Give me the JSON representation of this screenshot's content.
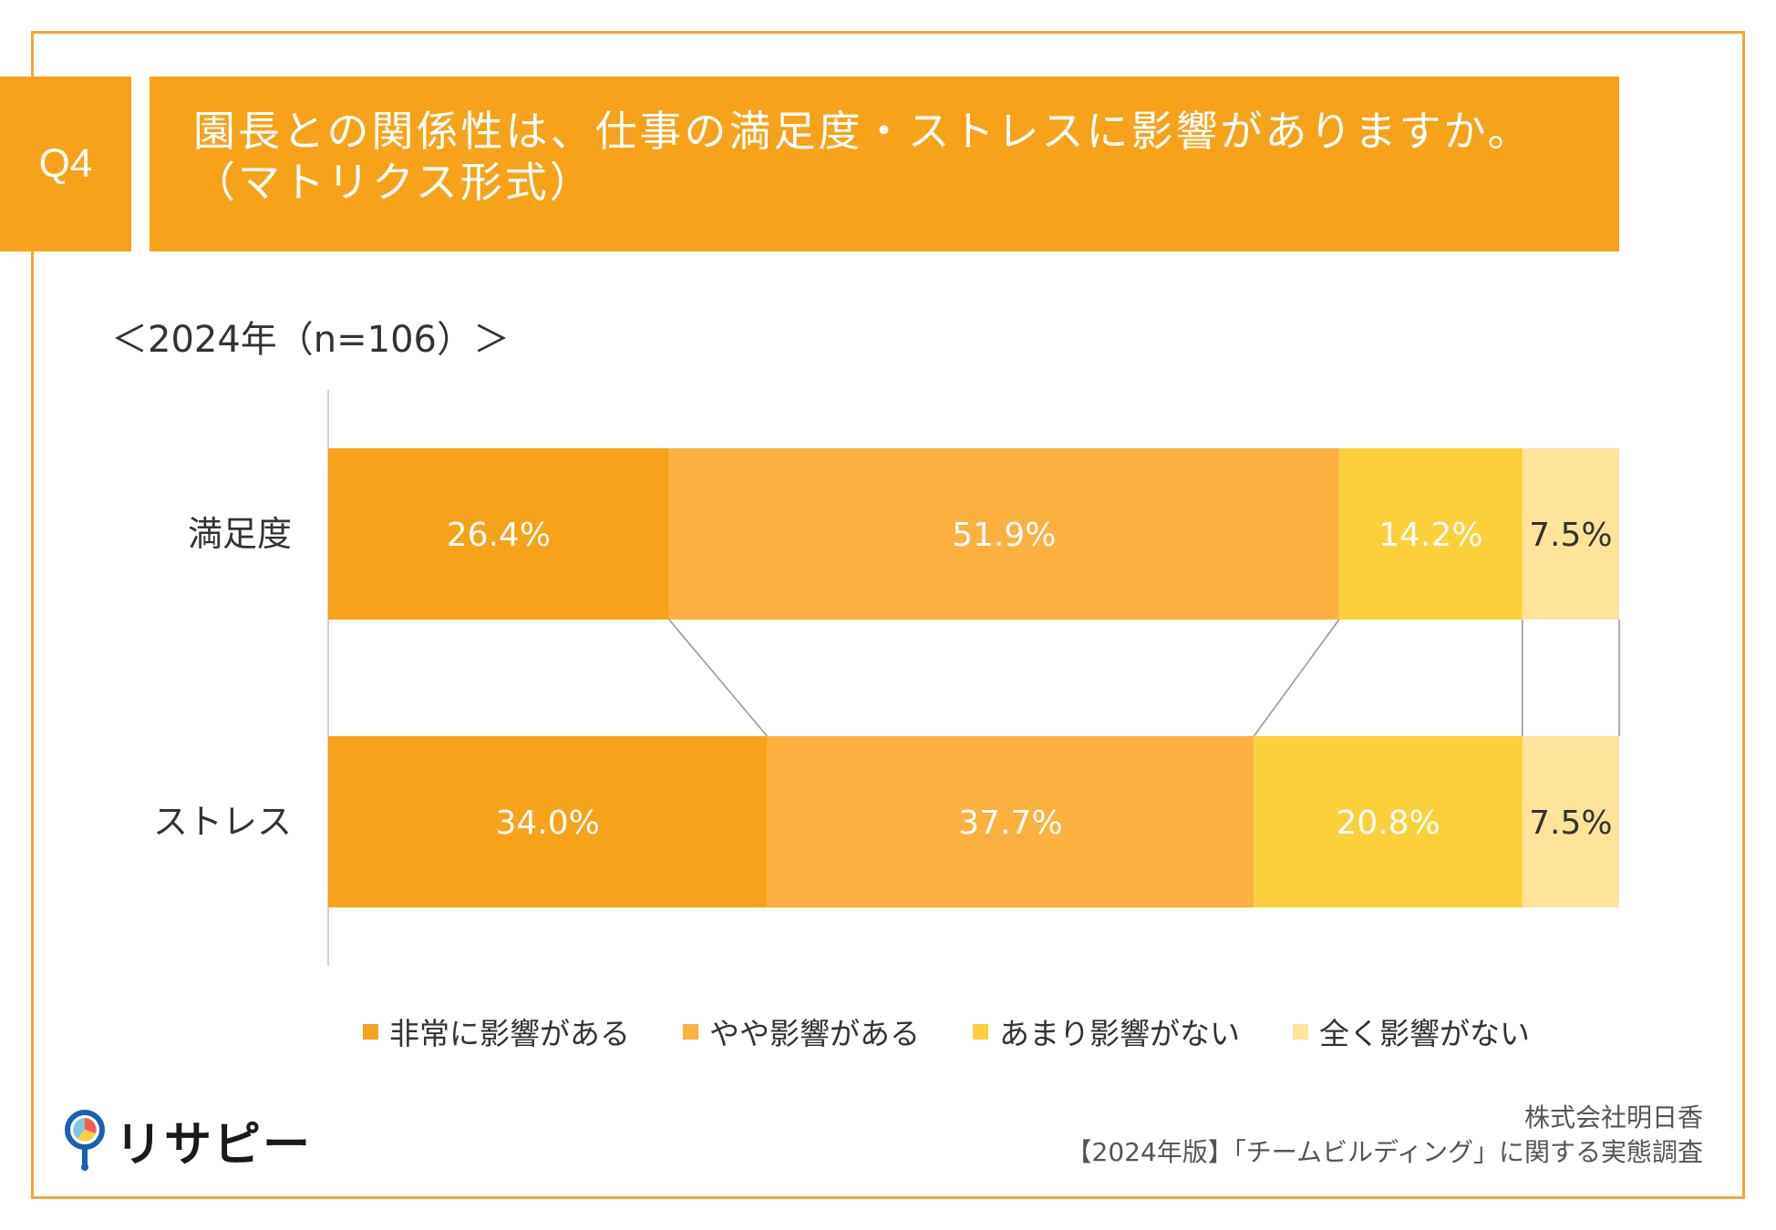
{
  "header": {
    "question_number": "Q4",
    "title_line1": "園長との関係性は、仕事の満足度・ストレスに影響がありますか。",
    "title_line2": "（マトリクス形式）"
  },
  "subtitle": "＜2024年（n=106）＞",
  "colors": {
    "frame": "#f0a93a",
    "header_bg": "#f7a21b",
    "series": [
      "#f7a21b",
      "#fbb040",
      "#fcd03a",
      "#fde49a"
    ]
  },
  "chart_data": {
    "type": "bar",
    "orientation": "horizontal",
    "stacked": "100%",
    "categories": [
      "満足度",
      "ストレス"
    ],
    "series": [
      {
        "name": "非常に影響がある",
        "values": [
          26.4,
          34.0
        ],
        "labels": [
          "26.4%",
          "34.0%"
        ]
      },
      {
        "name": "やや影響がある",
        "values": [
          51.9,
          37.7
        ],
        "labels": [
          "51.9%",
          "37.7%"
        ]
      },
      {
        "name": "あまり影響がない",
        "values": [
          14.2,
          20.8
        ],
        "labels": [
          "14.2%",
          "20.8%"
        ]
      },
      {
        "name": "全く影響がない",
        "values": [
          7.5,
          7.5
        ],
        "labels": [
          "7.5%",
          "7.5%"
        ]
      }
    ],
    "xlim": [
      0,
      100
    ],
    "series_lines": true,
    "legend_position": "bottom"
  },
  "logo": {
    "text": "リサピー"
  },
  "credit": {
    "line1": "株式会社明日香",
    "line2": "【2024年版】「チームビルディング」に関する実態調査"
  }
}
